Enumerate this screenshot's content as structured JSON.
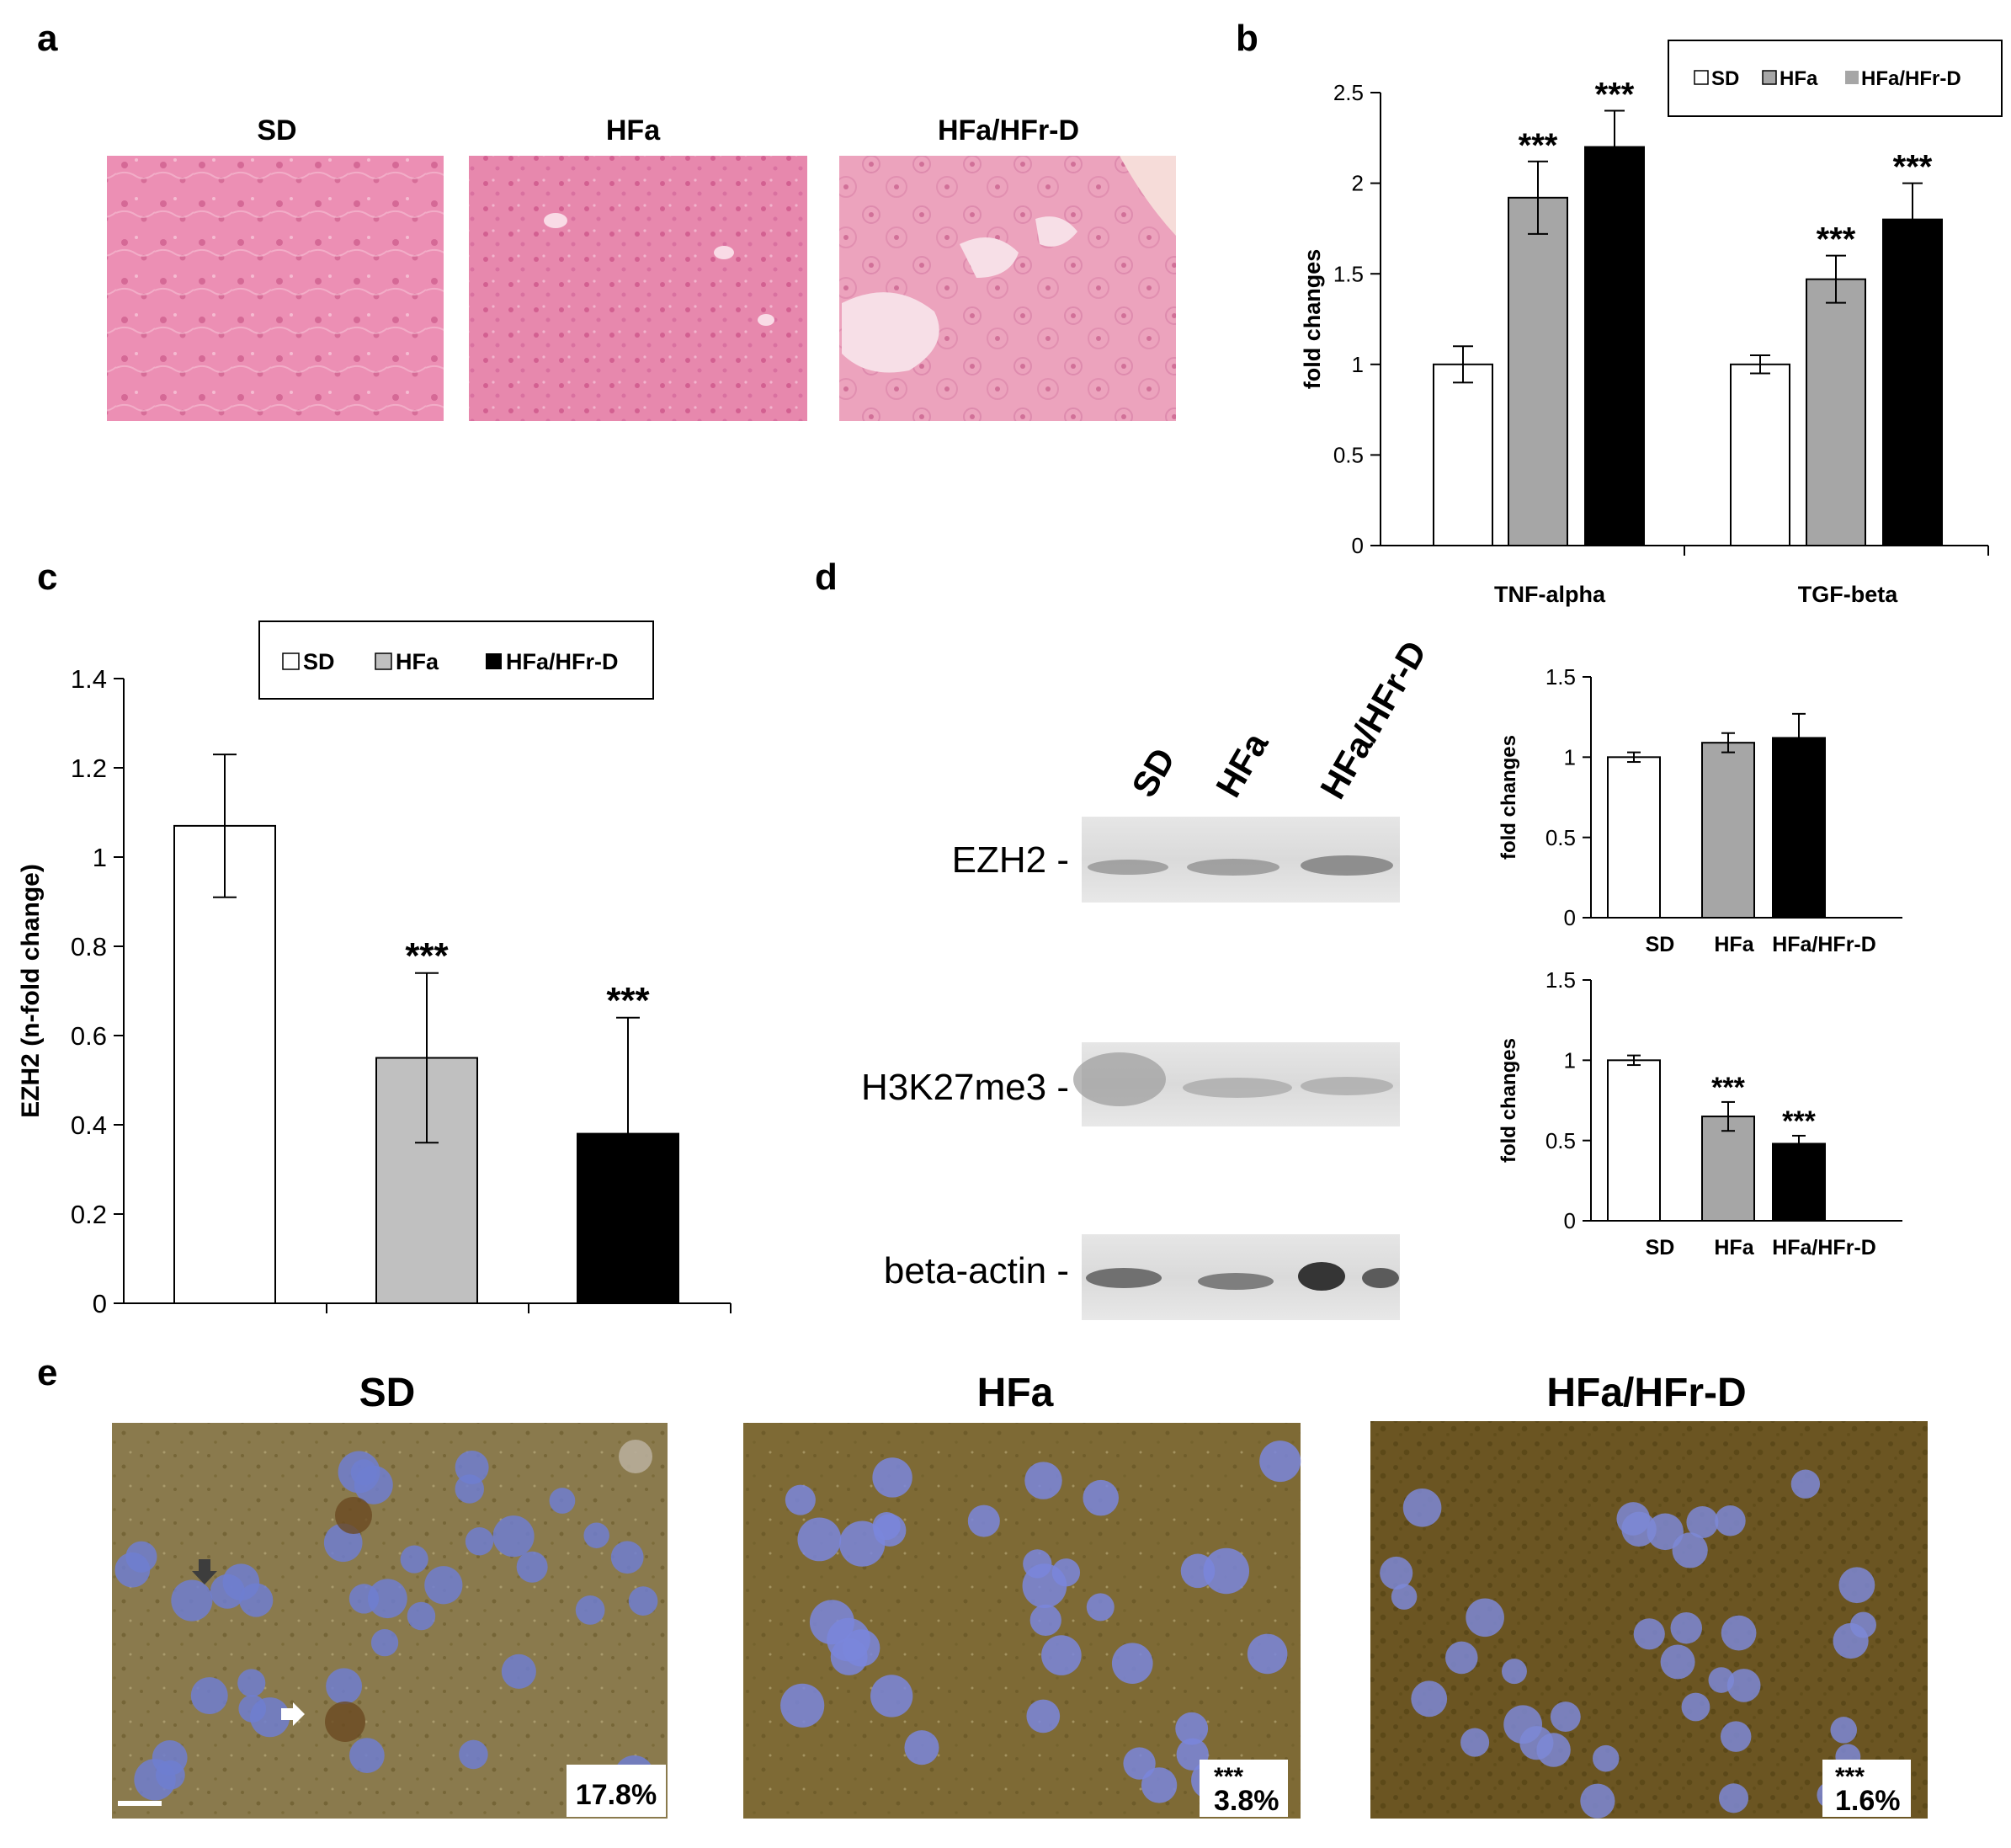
{
  "panels": {
    "a": {
      "label": "a",
      "images": [
        {
          "title": "SD",
          "tint": "#ec8fb4"
        },
        {
          "title": "HFa",
          "tint": "#e788ad"
        },
        {
          "title": "HFa/HFr-D",
          "tint": "#eca3bd"
        }
      ]
    },
    "d": {
      "label": "d",
      "blot_lanes": [
        "SD",
        "HFa",
        "HFa/HFr-D"
      ],
      "blot_rows": [
        "EZH2 -",
        "H3K27me3 -",
        "beta-actin -"
      ]
    },
    "e": {
      "label": "e",
      "images": [
        {
          "title": "SD",
          "percent": "17.8%",
          "stars": ""
        },
        {
          "title": "HFa",
          "percent": "3.8%",
          "stars": "***"
        },
        {
          "title": "HFa/HFr-D",
          "percent": "1.6%",
          "stars": "***"
        }
      ]
    }
  },
  "legend": {
    "b": [
      "SD",
      "HFa",
      "HFa/HFr-D"
    ],
    "c": [
      "SD",
      "HFa",
      "HFa/HFr-D"
    ]
  },
  "colors": {
    "SD": "#ffffff",
    "HFa": "#a6a6a6",
    "HFa/HFr-D": "#000000",
    "HFa_c": "#c0c0c0"
  },
  "chart_data": [
    {
      "id": "b",
      "label": "b",
      "type": "bar",
      "categories": [
        "TNF-alpha",
        "TGF-beta"
      ],
      "series": [
        {
          "name": "SD",
          "values": [
            1.0,
            1.0
          ],
          "errors": [
            0.1,
            0.05
          ],
          "stars": [
            "",
            ""
          ]
        },
        {
          "name": "HFa",
          "values": [
            1.92,
            1.47
          ],
          "errors": [
            0.2,
            0.13
          ],
          "stars": [
            "***",
            "***"
          ]
        },
        {
          "name": "HFa/HFr-D",
          "values": [
            2.2,
            1.8
          ],
          "errors": [
            0.2,
            0.2
          ],
          "stars": [
            "***",
            "***"
          ]
        }
      ],
      "ylabel": "fold changes",
      "ylim": [
        0,
        2.5
      ],
      "yticks": [
        "0",
        "0.5",
        "1",
        "1.5",
        "2",
        "2.5"
      ],
      "legend_position": "top-right"
    },
    {
      "id": "c",
      "label": "c",
      "type": "bar",
      "categories": [
        "SD",
        "HFa",
        "HFa/HFr-D"
      ],
      "values": [
        1.07,
        0.55,
        0.38
      ],
      "errors": [
        0.16,
        0.19,
        0.26
      ],
      "stars": [
        "",
        "***",
        "***"
      ],
      "ylabel": "EZH2  (n-fold change)",
      "ylim": [
        0,
        1.4
      ],
      "yticks": [
        "0",
        "0.2",
        "0.4",
        "0.6",
        "0.8",
        "1",
        "1.2",
        "1.4"
      ],
      "legend_position": "top"
    },
    {
      "id": "d1",
      "type": "bar",
      "categories": [
        "SD",
        "HFa",
        "HFa/HFr-D"
      ],
      "values": [
        1.0,
        1.09,
        1.12
      ],
      "errors": [
        0.03,
        0.06,
        0.15
      ],
      "stars": [
        "",
        "",
        ""
      ],
      "ylabel": "fold changes",
      "ylim": [
        0,
        1.5
      ],
      "yticks": [
        "0",
        "0.5",
        "1",
        "1.5"
      ]
    },
    {
      "id": "d2",
      "type": "bar",
      "categories": [
        "SD",
        "HFa",
        "HFa/HFr-D"
      ],
      "values": [
        1.0,
        0.65,
        0.48
      ],
      "errors": [
        0.03,
        0.09,
        0.05
      ],
      "stars": [
        "",
        "***",
        "***"
      ],
      "ylabel": "fold changes",
      "ylim": [
        0,
        1.5
      ],
      "yticks": [
        "0",
        "0.5",
        "1",
        "1.5"
      ]
    }
  ]
}
